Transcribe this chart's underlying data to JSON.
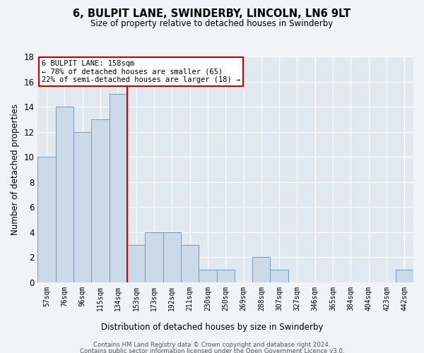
{
  "title": "6, BULPIT LANE, SWINDERBY, LINCOLN, LN6 9LT",
  "subtitle": "Size of property relative to detached houses in Swinderby",
  "xlabel": "Distribution of detached houses by size in Swinderby",
  "ylabel": "Number of detached properties",
  "categories": [
    "57sqm",
    "76sqm",
    "96sqm",
    "115sqm",
    "134sqm",
    "153sqm",
    "173sqm",
    "192sqm",
    "211sqm",
    "230sqm",
    "250sqm",
    "269sqm",
    "288sqm",
    "307sqm",
    "327sqm",
    "346sqm",
    "365sqm",
    "384sqm",
    "404sqm",
    "423sqm",
    "442sqm"
  ],
  "values": [
    10,
    14,
    12,
    13,
    15,
    3,
    4,
    4,
    3,
    1,
    1,
    0,
    2,
    1,
    0,
    0,
    0,
    0,
    0,
    0,
    1
  ],
  "bar_color": "#ccd9e8",
  "bar_edge_color": "#7799bb",
  "vline_color": "#cc0000",
  "annotation_line1": "6 BULPIT LANE: 158sqm",
  "annotation_line2": "← 78% of detached houses are smaller (65)",
  "annotation_line3": "22% of semi-detached houses are larger (18) →",
  "annotation_box_color": "#ffffff",
  "annotation_box_edge": "#cc0000",
  "ylim": [
    0,
    18
  ],
  "yticks": [
    0,
    2,
    4,
    6,
    8,
    10,
    12,
    14,
    16,
    18
  ],
  "footer1": "Contains HM Land Registry data © Crown copyright and database right 2024.",
  "footer2": "Contains public sector information licensed under the Open Government Licence v3.0.",
  "bg_color": "#f0f4f8",
  "plot_bg_color": "#e0e8f0"
}
